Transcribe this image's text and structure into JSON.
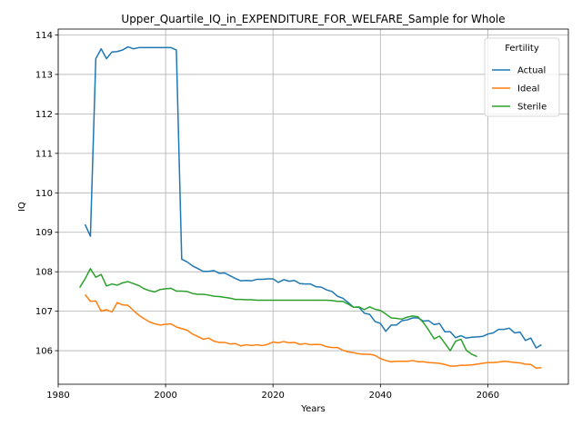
{
  "chart_data": {
    "type": "line",
    "title": "Upper_Quartile_IQ_in_EXPENDITURE_FOR_WELFARE_Sample for Whole",
    "xlabel": "Years",
    "ylabel": "IQ",
    "xlim": [
      1980,
      2075
    ],
    "ylim": [
      105.15,
      114.15
    ],
    "xticks": [
      1980,
      2000,
      2020,
      2040,
      2060
    ],
    "yticks": [
      106,
      107,
      108,
      109,
      110,
      111,
      112,
      113,
      114
    ],
    "grid": true,
    "legend": {
      "title": "Fertility",
      "position": "top-right"
    },
    "series": [
      {
        "name": "Actual",
        "color": "#1f77b4",
        "points": [
          [
            1985,
            109.2
          ],
          [
            1986,
            108.9
          ],
          [
            1987,
            113.4
          ],
          [
            1988,
            113.65
          ],
          [
            1989,
            113.4
          ],
          [
            1990,
            113.57
          ],
          [
            1991,
            113.58
          ],
          [
            1992,
            113.62
          ],
          [
            1993,
            113.7
          ],
          [
            1994,
            113.65
          ],
          [
            1995,
            113.68
          ],
          [
            1996,
            113.68
          ],
          [
            1997,
            113.68
          ],
          [
            1998,
            113.68
          ],
          [
            1999,
            113.68
          ],
          [
            2000,
            113.68
          ],
          [
            2001,
            113.68
          ],
          [
            2002,
            113.62
          ],
          [
            2003,
            108.32
          ],
          [
            2004,
            108.25
          ],
          [
            2005,
            108.15
          ],
          [
            2006,
            108.08
          ],
          [
            2007,
            108.01
          ],
          [
            2008,
            108.01
          ],
          [
            2009,
            108.03
          ],
          [
            2010,
            107.96
          ],
          [
            2011,
            107.97
          ],
          [
            2012,
            107.9
          ],
          [
            2013,
            107.83
          ],
          [
            2014,
            107.77
          ],
          [
            2015,
            107.78
          ],
          [
            2016,
            107.77
          ],
          [
            2017,
            107.81
          ],
          [
            2018,
            107.81
          ],
          [
            2019,
            107.82
          ],
          [
            2020,
            107.82
          ],
          [
            2021,
            107.73
          ],
          [
            2022,
            107.8
          ],
          [
            2023,
            107.76
          ],
          [
            2024,
            107.78
          ],
          [
            2025,
            107.7
          ],
          [
            2026,
            107.69
          ],
          [
            2027,
            107.69
          ],
          [
            2028,
            107.62
          ],
          [
            2029,
            107.61
          ],
          [
            2030,
            107.54
          ],
          [
            2031,
            107.5
          ],
          [
            2032,
            107.38
          ],
          [
            2033,
            107.33
          ],
          [
            2034,
            107.22
          ],
          [
            2035,
            107.1
          ],
          [
            2036,
            107.1
          ],
          [
            2037,
            106.95
          ],
          [
            2038,
            106.92
          ],
          [
            2039,
            106.74
          ],
          [
            2040,
            106.69
          ],
          [
            2041,
            106.49
          ],
          [
            2042,
            106.65
          ],
          [
            2043,
            106.65
          ],
          [
            2044,
            106.76
          ],
          [
            2045,
            106.78
          ],
          [
            2046,
            106.83
          ],
          [
            2047,
            106.83
          ],
          [
            2048,
            106.75
          ],
          [
            2049,
            106.76
          ],
          [
            2050,
            106.66
          ],
          [
            2051,
            106.69
          ],
          [
            2052,
            106.48
          ],
          [
            2053,
            106.48
          ],
          [
            2054,
            106.33
          ],
          [
            2055,
            106.38
          ],
          [
            2056,
            106.32
          ],
          [
            2057,
            106.34
          ],
          [
            2058,
            106.35
          ],
          [
            2059,
            106.36
          ],
          [
            2060,
            106.42
          ],
          [
            2061,
            106.45
          ],
          [
            2062,
            106.54
          ],
          [
            2063,
            106.54
          ],
          [
            2064,
            106.57
          ],
          [
            2065,
            106.45
          ],
          [
            2066,
            106.47
          ],
          [
            2067,
            106.26
          ],
          [
            2068,
            106.32
          ],
          [
            2069,
            106.07
          ],
          [
            2070,
            106.15
          ]
        ]
      },
      {
        "name": "Ideal",
        "color": "#ff7f0e",
        "points": [
          [
            1985,
            107.42
          ],
          [
            1986,
            107.25
          ],
          [
            1987,
            107.26
          ],
          [
            1988,
            107.0
          ],
          [
            1989,
            107.04
          ],
          [
            1990,
            106.98
          ],
          [
            1991,
            107.22
          ],
          [
            1992,
            107.16
          ],
          [
            1993,
            107.15
          ],
          [
            1994,
            107.02
          ],
          [
            1995,
            106.9
          ],
          [
            1996,
            106.81
          ],
          [
            1997,
            106.73
          ],
          [
            1998,
            106.68
          ],
          [
            1999,
            106.65
          ],
          [
            2000,
            106.67
          ],
          [
            2001,
            106.68
          ],
          [
            2002,
            106.6
          ],
          [
            2003,
            106.56
          ],
          [
            2004,
            106.52
          ],
          [
            2005,
            106.42
          ],
          [
            2006,
            106.36
          ],
          [
            2007,
            106.29
          ],
          [
            2008,
            106.32
          ],
          [
            2009,
            106.24
          ],
          [
            2010,
            106.21
          ],
          [
            2011,
            106.21
          ],
          [
            2012,
            106.17
          ],
          [
            2013,
            106.18
          ],
          [
            2014,
            106.12
          ],
          [
            2015,
            106.15
          ],
          [
            2016,
            106.13
          ],
          [
            2017,
            106.15
          ],
          [
            2018,
            106.13
          ],
          [
            2019,
            106.16
          ],
          [
            2020,
            106.22
          ],
          [
            2021,
            106.2
          ],
          [
            2022,
            106.23
          ],
          [
            2023,
            106.2
          ],
          [
            2024,
            106.21
          ],
          [
            2025,
            106.16
          ],
          [
            2026,
            106.18
          ],
          [
            2027,
            106.15
          ],
          [
            2028,
            106.16
          ],
          [
            2029,
            106.15
          ],
          [
            2030,
            106.1
          ],
          [
            2031,
            106.08
          ],
          [
            2032,
            106.08
          ],
          [
            2033,
            106.01
          ],
          [
            2034,
            105.97
          ],
          [
            2035,
            105.95
          ],
          [
            2036,
            105.92
          ],
          [
            2037,
            105.91
          ],
          [
            2038,
            105.91
          ],
          [
            2039,
            105.88
          ],
          [
            2040,
            105.8
          ],
          [
            2041,
            105.75
          ],
          [
            2042,
            105.72
          ],
          [
            2043,
            105.73
          ],
          [
            2044,
            105.73
          ],
          [
            2045,
            105.73
          ],
          [
            2046,
            105.75
          ],
          [
            2047,
            105.72
          ],
          [
            2048,
            105.72
          ],
          [
            2049,
            105.7
          ],
          [
            2050,
            105.69
          ],
          [
            2051,
            105.68
          ],
          [
            2052,
            105.65
          ],
          [
            2053,
            105.61
          ],
          [
            2054,
            105.61
          ],
          [
            2055,
            105.63
          ],
          [
            2056,
            105.63
          ],
          [
            2057,
            105.64
          ],
          [
            2058,
            105.66
          ],
          [
            2059,
            105.68
          ],
          [
            2060,
            105.7
          ],
          [
            2061,
            105.7
          ],
          [
            2062,
            105.71
          ],
          [
            2063,
            105.73
          ],
          [
            2064,
            105.72
          ],
          [
            2065,
            105.7
          ],
          [
            2066,
            105.69
          ],
          [
            2067,
            105.66
          ],
          [
            2068,
            105.65
          ],
          [
            2069,
            105.56
          ],
          [
            2070,
            105.57
          ]
        ]
      },
      {
        "name": "Sterile",
        "color": "#2ca02c",
        "points": [
          [
            1984,
            107.6
          ],
          [
            1985,
            107.82
          ],
          [
            1986,
            108.08
          ],
          [
            1987,
            107.86
          ],
          [
            1988,
            107.93
          ],
          [
            1989,
            107.64
          ],
          [
            1990,
            107.69
          ],
          [
            1991,
            107.66
          ],
          [
            1992,
            107.72
          ],
          [
            1993,
            107.75
          ],
          [
            1994,
            107.7
          ],
          [
            1995,
            107.65
          ],
          [
            1996,
            107.57
          ],
          [
            1997,
            107.52
          ],
          [
            1998,
            107.49
          ],
          [
            1999,
            107.55
          ],
          [
            2000,
            107.57
          ],
          [
            2001,
            107.58
          ],
          [
            2002,
            107.51
          ],
          [
            2003,
            107.51
          ],
          [
            2004,
            107.5
          ],
          [
            2005,
            107.45
          ],
          [
            2006,
            107.43
          ],
          [
            2007,
            107.43
          ],
          [
            2008,
            107.41
          ],
          [
            2009,
            107.38
          ],
          [
            2010,
            107.37
          ],
          [
            2011,
            107.35
          ],
          [
            2012,
            107.33
          ],
          [
            2013,
            107.3
          ],
          [
            2014,
            107.3
          ],
          [
            2015,
            107.29
          ],
          [
            2016,
            107.29
          ],
          [
            2017,
            107.28
          ],
          [
            2018,
            107.28
          ],
          [
            2019,
            107.28
          ],
          [
            2020,
            107.28
          ],
          [
            2021,
            107.28
          ],
          [
            2022,
            107.28
          ],
          [
            2023,
            107.28
          ],
          [
            2024,
            107.28
          ],
          [
            2025,
            107.28
          ],
          [
            2026,
            107.28
          ],
          [
            2027,
            107.28
          ],
          [
            2028,
            107.28
          ],
          [
            2029,
            107.28
          ],
          [
            2030,
            107.28
          ],
          [
            2031,
            107.27
          ],
          [
            2032,
            107.25
          ],
          [
            2033,
            107.25
          ],
          [
            2034,
            107.18
          ],
          [
            2035,
            107.1
          ],
          [
            2036,
            107.11
          ],
          [
            2037,
            107.04
          ],
          [
            2038,
            107.11
          ],
          [
            2039,
            107.05
          ],
          [
            2040,
            107.02
          ],
          [
            2041,
            106.93
          ],
          [
            2042,
            106.83
          ],
          [
            2043,
            106.82
          ],
          [
            2044,
            106.8
          ],
          [
            2045,
            106.85
          ],
          [
            2046,
            106.88
          ],
          [
            2047,
            106.86
          ],
          [
            2048,
            106.71
          ],
          [
            2049,
            106.52
          ],
          [
            2050,
            106.3
          ],
          [
            2051,
            106.37
          ],
          [
            2052,
            106.19
          ],
          [
            2053,
            106.0
          ],
          [
            2054,
            106.24
          ],
          [
            2055,
            106.29
          ],
          [
            2056,
            106.01
          ],
          [
            2057,
            105.91
          ],
          [
            2058,
            105.85
          ]
        ]
      }
    ]
  }
}
